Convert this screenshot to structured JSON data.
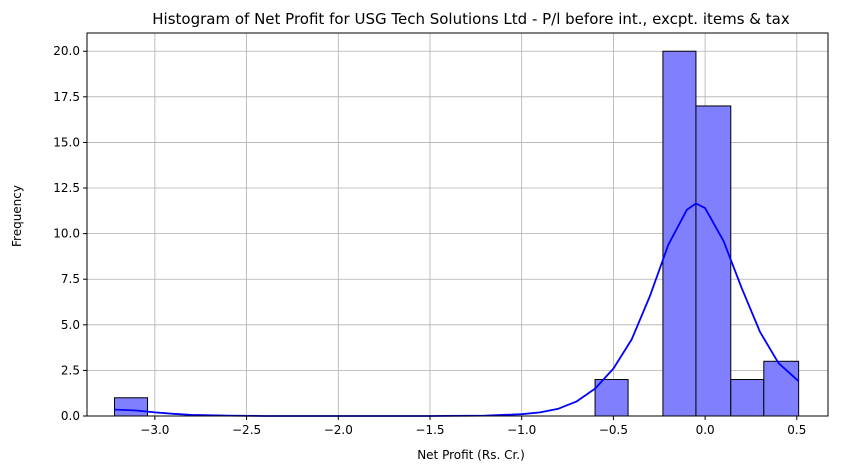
{
  "chart_data": {
    "type": "bar",
    "title": "Histogram of Net Profit for USG Tech Solutions Ltd - P/l before int., excpt. items & tax",
    "xlabel": "Net Profit (Rs. Cr.)",
    "ylabel": "Frequency",
    "xlim": [
      -3.37,
      0.67
    ],
    "ylim": [
      0,
      21
    ],
    "grid": true,
    "bins": [
      {
        "x0": -3.22,
        "x1": -3.04,
        "count": 1
      },
      {
        "x0": -3.04,
        "x1": -2.86,
        "count": 0
      },
      {
        "x0": -2.86,
        "x1": -2.68,
        "count": 0
      },
      {
        "x0": -2.68,
        "x1": -2.49,
        "count": 0
      },
      {
        "x0": -2.49,
        "x1": -2.31,
        "count": 0
      },
      {
        "x0": -2.31,
        "x1": -2.13,
        "count": 0
      },
      {
        "x0": -2.13,
        "x1": -1.94,
        "count": 0
      },
      {
        "x0": -1.94,
        "x1": -1.76,
        "count": 0
      },
      {
        "x0": -1.76,
        "x1": -1.58,
        "count": 0
      },
      {
        "x0": -1.58,
        "x1": -1.39,
        "count": 0
      },
      {
        "x0": -1.39,
        "x1": -1.21,
        "count": 0
      },
      {
        "x0": -1.21,
        "x1": -1.03,
        "count": 0
      },
      {
        "x0": -1.03,
        "x1": -0.84,
        "count": 0
      },
      {
        "x0": -0.84,
        "x1": -0.6,
        "count": 0
      },
      {
        "x0": -0.6,
        "x1": -0.42,
        "count": 2
      },
      {
        "x0": -0.42,
        "x1": -0.23,
        "count": 0
      },
      {
        "x0": -0.23,
        "x1": -0.05,
        "count": 20
      },
      {
        "x0": -0.05,
        "x1": 0.14,
        "count": 17
      },
      {
        "x0": 0.14,
        "x1": 0.32,
        "count": 2
      },
      {
        "x0": 0.32,
        "x1": 0.51,
        "count": 3
      }
    ],
    "kde": {
      "name": "density estimate",
      "x": [
        -3.22,
        -3.1,
        -3.0,
        -2.9,
        -2.8,
        -2.6,
        -2.4,
        -2.0,
        -1.5,
        -1.2,
        -1.0,
        -0.9,
        -0.8,
        -0.7,
        -0.6,
        -0.5,
        -0.4,
        -0.3,
        -0.2,
        -0.1,
        -0.05,
        0.0,
        0.1,
        0.2,
        0.3,
        0.4,
        0.51
      ],
      "y": [
        0.35,
        0.3,
        0.2,
        0.12,
        0.06,
        0.02,
        0.0,
        0.0,
        0.0,
        0.02,
        0.1,
        0.2,
        0.4,
        0.8,
        1.5,
        2.6,
        4.2,
        6.6,
        9.4,
        11.3,
        11.65,
        11.4,
        9.6,
        7.0,
        4.6,
        2.9,
        1.9
      ]
    },
    "x_ticks": [
      -3.0,
      -2.5,
      -2.0,
      -1.5,
      -1.0,
      -0.5,
      0.0,
      0.5
    ],
    "x_tick_labels": [
      "−3.0",
      "−2.5",
      "−2.0",
      "−1.5",
      "−1.0",
      "−0.5",
      "0.0",
      "0.5"
    ],
    "y_ticks": [
      0,
      2.5,
      5,
      7.5,
      10,
      12.5,
      15,
      17.5,
      20
    ],
    "y_tick_labels": [
      "0.0",
      "2.5",
      "5.0",
      "7.5",
      "10.0",
      "12.5",
      "15.0",
      "17.5",
      "20.0"
    ],
    "colors": {
      "bar_fill": "#8080ff",
      "bar_edge": "#000000",
      "kde_line": "#0000ff",
      "grid": "#b0b0b0"
    }
  }
}
